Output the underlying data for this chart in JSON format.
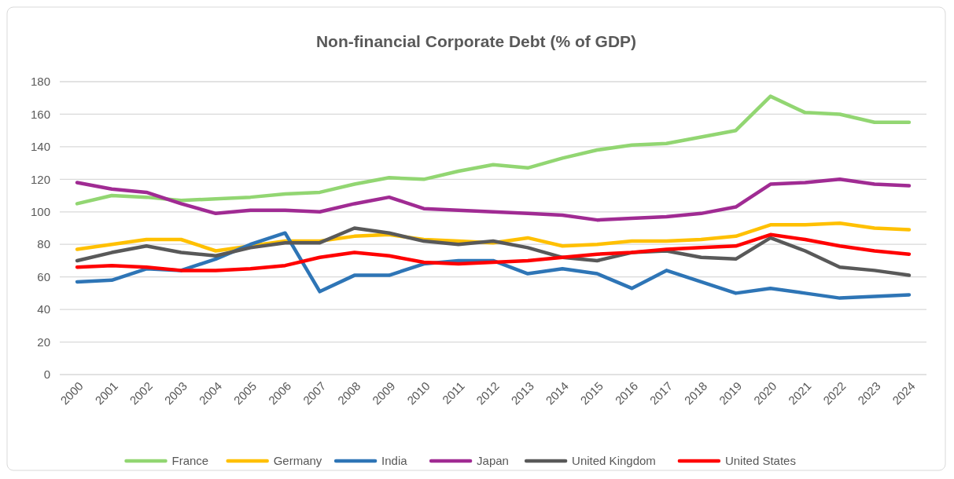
{
  "chart_data": {
    "type": "line",
    "title": "Non-financial Corporate Debt  (% of GDP)",
    "categories": [
      "2000",
      "2001",
      "2002",
      "2003",
      "2004",
      "2005",
      "2006",
      "2007",
      "2008",
      "2009",
      "2010",
      "2011",
      "2012",
      "2013",
      "2014",
      "2015",
      "2016",
      "2017",
      "2018",
      "2019",
      "2020",
      "2021",
      "2022",
      "2023",
      "2024"
    ],
    "series": [
      {
        "name": "France",
        "color": "#92d672",
        "values": [
          105,
          110,
          109,
          107,
          108,
          109,
          111,
          112,
          117,
          121,
          120,
          125,
          129,
          127,
          133,
          138,
          141,
          142,
          146,
          150,
          171,
          161,
          160,
          155,
          155
        ]
      },
      {
        "name": "Germany",
        "color": "#ffc000",
        "values": [
          77,
          80,
          83,
          83,
          76,
          79,
          82,
          82,
          85,
          86,
          83,
          82,
          81,
          84,
          79,
          80,
          82,
          82,
          83,
          85,
          92,
          92,
          93,
          90,
          89
        ]
      },
      {
        "name": "India",
        "color": "#2e75b6",
        "values": [
          57,
          58,
          65,
          64,
          71,
          80,
          87,
          51,
          61,
          61,
          68,
          70,
          70,
          62,
          65,
          62,
          53,
          64,
          57,
          50,
          53,
          50,
          47,
          48,
          49
        ]
      },
      {
        "name": "Japan",
        "color": "#a02b93",
        "values": [
          118,
          114,
          112,
          105,
          99,
          101,
          101,
          100,
          105,
          109,
          102,
          101,
          100,
          99,
          98,
          95,
          96,
          97,
          99,
          103,
          117,
          118,
          120,
          117,
          116
        ]
      },
      {
        "name": "United Kingdom",
        "color": "#595959",
        "values": [
          70,
          75,
          79,
          75,
          73,
          78,
          81,
          81,
          90,
          87,
          82,
          80,
          82,
          78,
          72,
          70,
          75,
          76,
          72,
          71,
          84,
          76,
          66,
          64,
          61
        ]
      },
      {
        "name": "United States",
        "color": "#ff0000",
        "values": [
          66,
          67,
          66,
          64,
          64,
          65,
          67,
          72,
          75,
          73,
          69,
          68,
          69,
          70,
          72,
          74,
          75,
          77,
          78,
          79,
          86,
          83,
          79,
          76,
          74
        ]
      }
    ],
    "ylim": [
      0,
      180
    ],
    "yticks": [
      0,
      20,
      40,
      60,
      80,
      100,
      120,
      140,
      160,
      180
    ],
    "grid": "y",
    "legend": "bottom",
    "marker": "none",
    "line_style": "solid"
  }
}
